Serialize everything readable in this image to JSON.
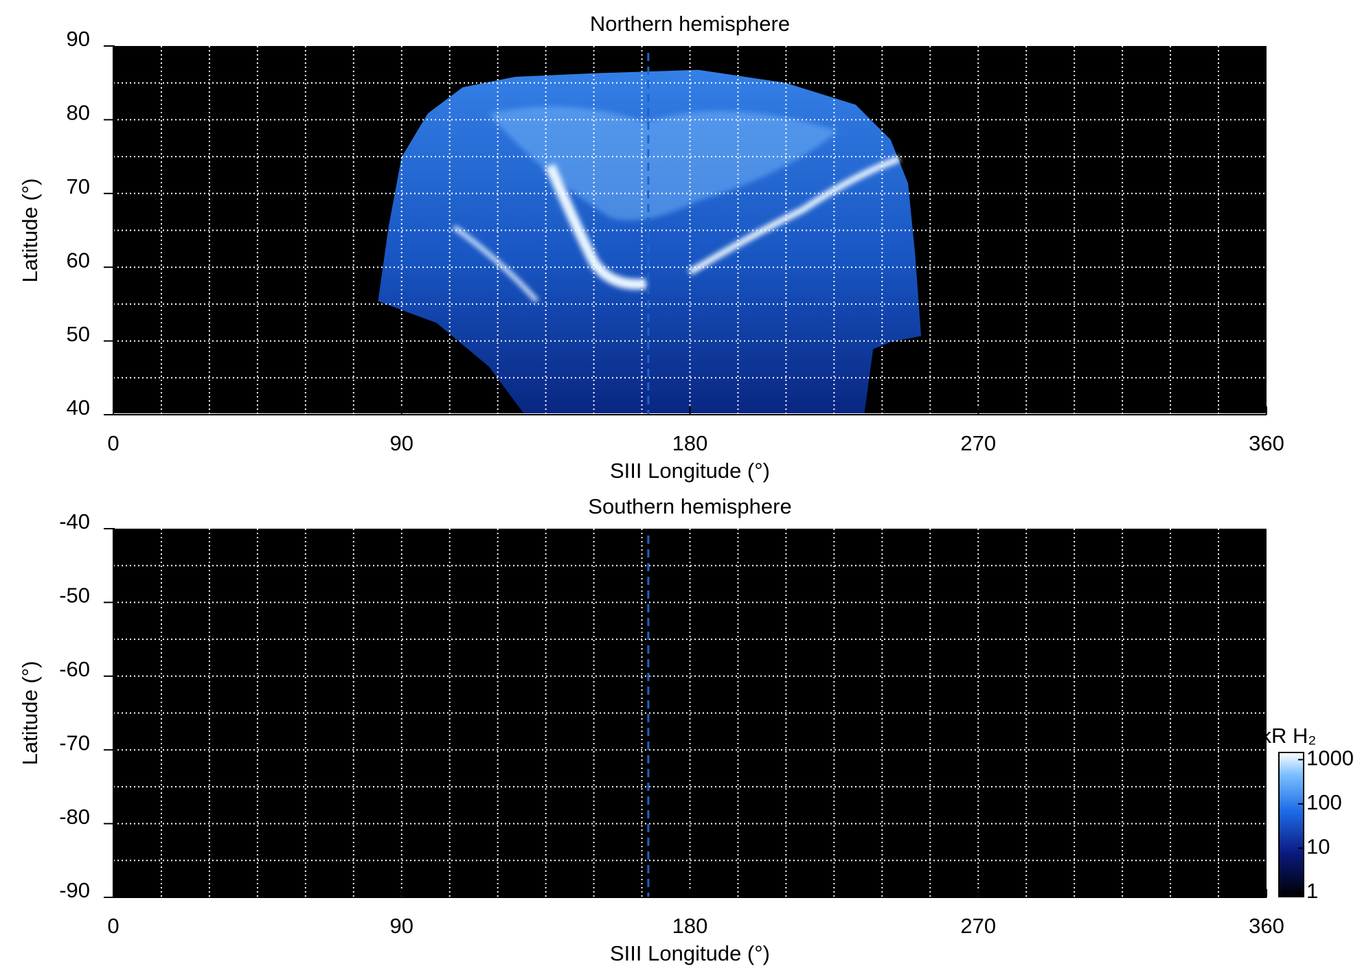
{
  "chart_data": [
    {
      "type": "heatmap",
      "title": "Northern hemisphere",
      "x_label": "SIII Longitude (°)",
      "y_label": "Latitude (°)",
      "xlim": [
        0,
        360
      ],
      "xticks": [
        0,
        90,
        180,
        270,
        360
      ],
      "ylim": [
        40,
        90
      ],
      "yticks": [
        40,
        50,
        60,
        70,
        80,
        90
      ],
      "grid_x": [
        15,
        30,
        45,
        60,
        75,
        90,
        105,
        120,
        135,
        150,
        165,
        180,
        195,
        210,
        225,
        240,
        255,
        270,
        285,
        300,
        315,
        330,
        345
      ],
      "grid_y": [
        45,
        50,
        55,
        60,
        65,
        70,
        75,
        80,
        85
      ],
      "reference_line": {
        "x": 167,
        "color": "#1e64c8"
      }
    },
    {
      "type": "heatmap",
      "title": "Southern hemisphere",
      "x_label": "SIII Longitude (°)",
      "y_label": "Latitude (°)",
      "xlim": [
        0,
        360
      ],
      "xticks": [
        0,
        90,
        180,
        270,
        360
      ],
      "ylim": [
        -90,
        -40
      ],
      "yticks": [
        -40,
        -50,
        -60,
        -70,
        -80,
        -90
      ],
      "grid_x": [
        15,
        30,
        45,
        60,
        75,
        90,
        105,
        120,
        135,
        150,
        165,
        180,
        195,
        210,
        225,
        240,
        255,
        270,
        285,
        300,
        315,
        330,
        345
      ],
      "grid_y": [
        -45,
        -50,
        -55,
        -60,
        -65,
        -70,
        -75,
        -80,
        -85
      ],
      "reference_line": {
        "x": 167,
        "color": "#1e64c8"
      },
      "colorbar": {
        "label": "kR H₂",
        "scale": "log",
        "lim": [
          0.8,
          1450
        ],
        "ticks": [
          1,
          10,
          100,
          1000
        ]
      }
    }
  ]
}
